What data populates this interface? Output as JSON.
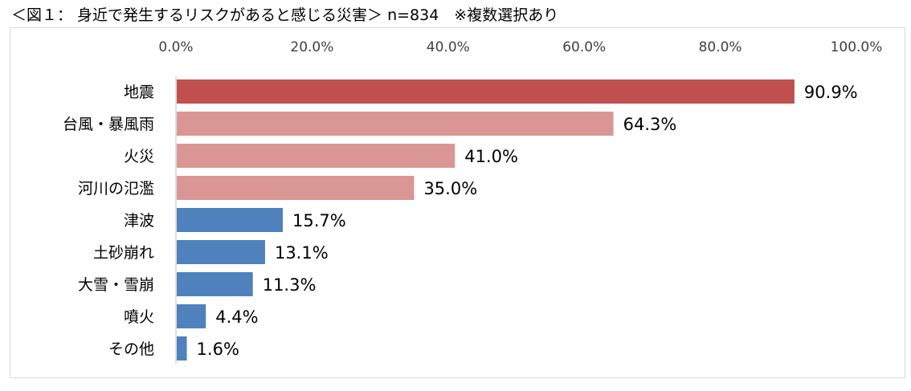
{
  "header": {
    "title": "＜図１： 身近で発生するリスクがあると感じる災害＞ n=834　※複数選択あり"
  },
  "chart_data": {
    "type": "bar",
    "orientation": "horizontal",
    "title": "＜図１： 身近で発生するリスクがあると感じる災害＞ n=834　※複数選択あり",
    "xlabel": "",
    "ylabel": "",
    "xlim": [
      0,
      100
    ],
    "x_axis_position": "top",
    "x_ticks": [
      "0.0%",
      "20.0%",
      "40.0%",
      "60.0%",
      "80.0%",
      "100.0%"
    ],
    "x_tick_values": [
      0,
      20,
      40,
      60,
      80,
      100
    ],
    "grid": false,
    "legend": "none",
    "categories": [
      "地震",
      "台風・暴風雨",
      "火災",
      "河川の氾濫",
      "津波",
      "土砂崩れ",
      "大雪・雪崩",
      "噴火",
      "その他"
    ],
    "values": [
      90.9,
      64.3,
      41.0,
      35.0,
      15.7,
      13.1,
      11.3,
      4.4,
      1.6
    ],
    "value_labels": [
      "90.9%",
      "64.3%",
      "41.0%",
      "35.0%",
      "15.7%",
      "13.1%",
      "11.3%",
      "4.4%",
      "1.6%"
    ],
    "colors": [
      "#c0504d",
      "#d99694",
      "#d99694",
      "#d99694",
      "#4f81bd",
      "#4f81bd",
      "#4f81bd",
      "#4f81bd",
      "#4f81bd"
    ],
    "axis_color": "#bfbfbf"
  }
}
